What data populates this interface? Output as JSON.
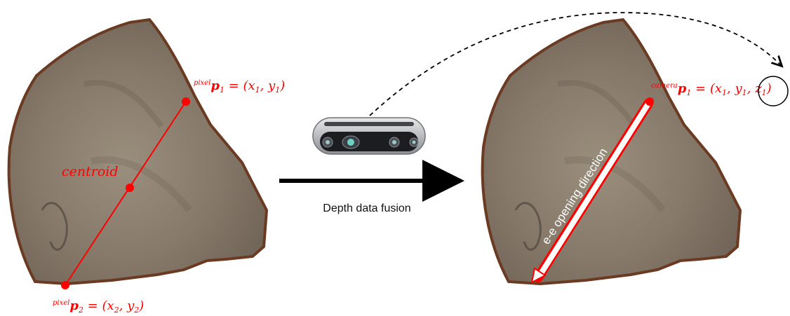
{
  "left_figure": {
    "p1_label": {
      "superscript": "pixel",
      "symbol": "p",
      "subscript": "1",
      "rest": " = (x",
      "sub_x": "1",
      "mid": ", y",
      "sub_y": "1",
      "close": ")"
    },
    "p2_label": {
      "superscript": "pixel",
      "symbol": "p",
      "subscript": "2",
      "rest": " = (x",
      "sub_x": "2",
      "mid": ", y",
      "sub_y": "2",
      "close": ")"
    },
    "centroid_label": "centroid"
  },
  "middle": {
    "arrow_caption": "Depth data fusion",
    "camera_icon": "depth-camera-icon"
  },
  "right_figure": {
    "p1_label": {
      "superscript": "camera",
      "symbol": "p",
      "subscript": "1",
      "rest": " = (x",
      "sub_x": "1",
      "mid": ", y",
      "sub_y": "1",
      "sep": ", ",
      "z": "z",
      "sub_z": "1",
      "close": ")"
    },
    "direction_label": "e-e opening direction"
  },
  "colors": {
    "annotation": "#ff0000",
    "stone_fill": "#8a7d6c",
    "stone_edge": "#6b3a22",
    "arrow": "#000000"
  }
}
